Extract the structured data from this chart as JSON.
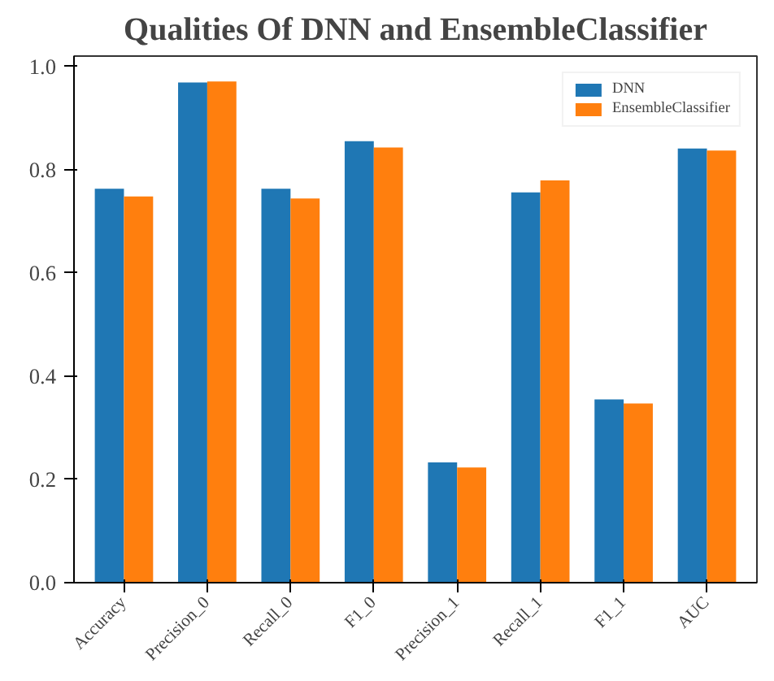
{
  "chart_data": {
    "type": "bar",
    "title": "Qualities Of DNN and EnsembleClassifier",
    "categories": [
      "Accuracy",
      "Precision_0",
      "Recall_0",
      "F1_0",
      "Precision_1",
      "Recall_1",
      "F1_1",
      "AUC"
    ],
    "series": [
      {
        "name": "DNN",
        "color": "#1f77b4",
        "values": [
          0.763,
          0.969,
          0.763,
          0.855,
          0.233,
          0.756,
          0.355,
          0.841
        ]
      },
      {
        "name": "EnsembleClassifier",
        "color": "#ff7f0e",
        "values": [
          0.748,
          0.971,
          0.744,
          0.843,
          0.223,
          0.779,
          0.347,
          0.837
        ]
      }
    ],
    "ylim": [
      0,
      1.02
    ],
    "yticks": [
      {
        "value": 0,
        "label": "0.0"
      },
      {
        "value": 0.2,
        "label": "0.2"
      },
      {
        "value": 0.4,
        "label": "0.4"
      },
      {
        "value": 0.6,
        "label": "0.6"
      },
      {
        "value": 0.8,
        "label": "0.8"
      },
      {
        "value": 1,
        "label": "1.0"
      }
    ],
    "grid": false,
    "legend": "top right"
  }
}
